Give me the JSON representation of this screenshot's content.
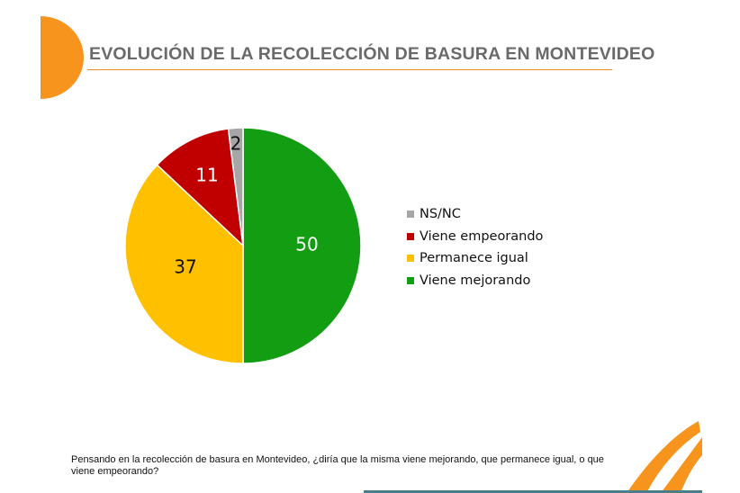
{
  "slide": {
    "title": "EVOLUCIÓN DE LA RECOLECCIÓN DE BASURA EN MONTEVIDEO",
    "footnote": "Pensando en la recolección de basura en Montevideo,  ¿diría que la misma viene mejorando, que permanece igual, o que viene empeorando?",
    "accent_color": "#f08a2a"
  },
  "chart_data": {
    "type": "pie",
    "title": "",
    "legend_position": "right",
    "slices": [
      {
        "label": "Viene mejorando",
        "value": 50,
        "color": "#129d12"
      },
      {
        "label": "Permanece igual",
        "value": 37,
        "color": "#ffc000"
      },
      {
        "label": "Viene empeorando",
        "value": 11,
        "color": "#c00000"
      },
      {
        "label": "NS/NC",
        "value": 2,
        "color": "#a6a6a6"
      }
    ],
    "legend_order": [
      "NS/NC",
      "Viene empeorando",
      "Permanece igual",
      "Viene mejorando"
    ]
  }
}
